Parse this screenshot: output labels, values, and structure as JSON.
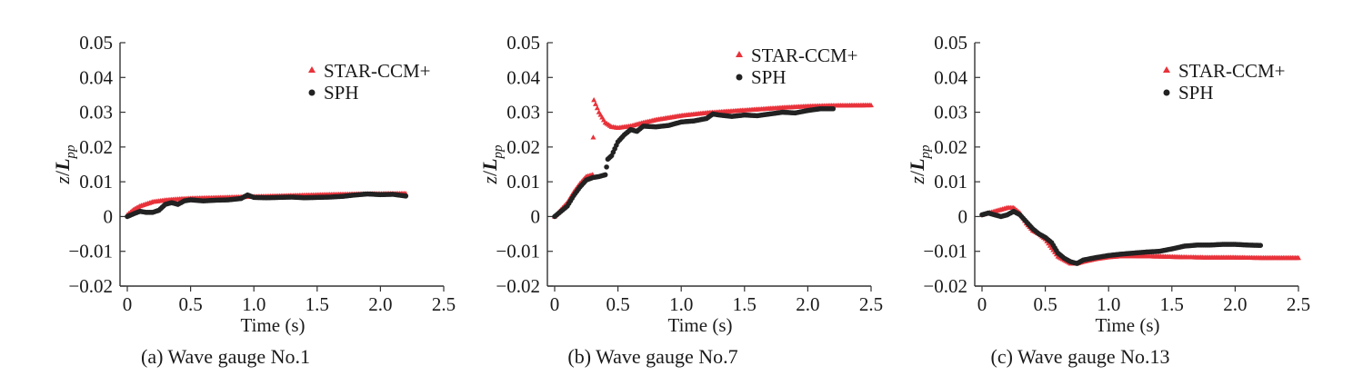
{
  "colors": {
    "star": "#e8323a",
    "sph": "#222222",
    "axis": "#333333"
  },
  "chart_data": [
    {
      "type": "scatter",
      "caption": "(a) Wave gauge No.1",
      "xlabel": "Time (s)",
      "ylabel_main": "z",
      "ylabel_slash": "/",
      "ylabel_L": "L",
      "ylabel_sub": "pp",
      "xlim": [
        0,
        2.5
      ],
      "ylim": [
        -0.02,
        0.05
      ],
      "xticks": [
        0,
        0.5,
        1.0,
        1.5,
        2.0,
        2.5
      ],
      "xtick_labels": [
        "0",
        "0.5",
        "1.0",
        "1.5",
        "2.0",
        "2.5"
      ],
      "yticks": [
        -0.02,
        -0.01,
        0,
        0.01,
        0.02,
        0.03,
        0.04,
        0.05
      ],
      "ytick_labels": [
        "−0.02",
        "−0.01",
        "0",
        "0.01",
        "0.02",
        "0.03",
        "0.04",
        "0.05"
      ],
      "legend": [
        {
          "name": "STAR-CCM+",
          "marker": "triangle"
        },
        {
          "name": "SPH",
          "marker": "circle"
        }
      ],
      "series": [
        {
          "name": "STAR-CCM+",
          "marker": "triangle",
          "x": [
            0,
            0.05,
            0.1,
            0.2,
            0.3,
            0.4,
            0.5,
            0.7,
            1.0,
            1.3,
            1.6,
            1.9,
            2.2
          ],
          "y": [
            0.0005,
            0.002,
            0.003,
            0.0042,
            0.0047,
            0.005,
            0.0052,
            0.0054,
            0.0057,
            0.006,
            0.0063,
            0.0065,
            0.0066
          ]
        },
        {
          "name": "SPH",
          "marker": "circle",
          "x": [
            0,
            0.05,
            0.1,
            0.15,
            0.2,
            0.25,
            0.3,
            0.35,
            0.4,
            0.45,
            0.5,
            0.6,
            0.7,
            0.8,
            0.9,
            0.95,
            1.0,
            1.1,
            1.2,
            1.3,
            1.4,
            1.5,
            1.6,
            1.7,
            1.8,
            1.9,
            2.0,
            2.1,
            2.2
          ],
          "y": [
            0.0,
            0.0008,
            0.0015,
            0.0012,
            0.0012,
            0.0018,
            0.0035,
            0.004,
            0.0035,
            0.0045,
            0.0048,
            0.0045,
            0.0047,
            0.0048,
            0.0052,
            0.0062,
            0.0055,
            0.0054,
            0.0055,
            0.0056,
            0.0054,
            0.0055,
            0.0056,
            0.0058,
            0.0062,
            0.0065,
            0.0063,
            0.0064,
            0.0059
          ]
        }
      ]
    },
    {
      "type": "scatter",
      "caption": "(b) Wave gauge No.7",
      "xlabel": "Time (s)",
      "ylabel_main": "z",
      "ylabel_slash": "/",
      "ylabel_L": "L",
      "ylabel_sub": "pp",
      "xlim": [
        0,
        2.5
      ],
      "ylim": [
        -0.02,
        0.05
      ],
      "xticks": [
        0,
        0.5,
        1.0,
        1.5,
        2.0,
        2.5
      ],
      "xtick_labels": [
        "0",
        "0.5",
        "1.0",
        "1.5",
        "2.0",
        "2.5"
      ],
      "yticks": [
        -0.02,
        -0.01,
        0,
        0.01,
        0.02,
        0.03,
        0.04,
        0.05
      ],
      "ytick_labels": [
        "−0.02",
        "−0.01",
        "0",
        "0.01",
        "0.02",
        "0.03",
        "0.04",
        "0.05"
      ],
      "legend": [
        {
          "name": "STAR-CCM+",
          "marker": "triangle"
        },
        {
          "name": "SPH",
          "marker": "circle"
        }
      ],
      "series": [
        {
          "name": "STAR-CCM+",
          "marker": "triangle",
          "x": [
            0,
            0.05,
            0.1,
            0.15,
            0.2,
            0.25,
            0.3,
            0.31,
            0.35,
            0.4,
            0.45,
            0.5,
            0.6,
            0.7,
            0.8,
            1.0,
            1.2,
            1.4,
            1.6,
            1.8,
            2.0,
            2.2,
            2.5
          ],
          "y": [
            0.0,
            0.002,
            0.004,
            0.007,
            0.0095,
            0.0115,
            0.012,
            0.0335,
            0.03,
            0.027,
            0.0258,
            0.0255,
            0.026,
            0.027,
            0.0278,
            0.029,
            0.0298,
            0.0303,
            0.0308,
            0.0313,
            0.0317,
            0.0319,
            0.032
          ]
        },
        {
          "name": "SPH",
          "marker": "circle",
          "x": [
            0,
            0.05,
            0.1,
            0.15,
            0.2,
            0.25,
            0.3,
            0.35,
            0.4,
            0.42,
            0.45,
            0.5,
            0.55,
            0.6,
            0.65,
            0.7,
            0.8,
            0.9,
            1.0,
            1.1,
            1.2,
            1.25,
            1.3,
            1.4,
            1.5,
            1.6,
            1.7,
            1.8,
            1.9,
            2.0,
            2.1,
            2.2
          ],
          "y": [
            0.0,
            0.0015,
            0.003,
            0.006,
            0.0085,
            0.0105,
            0.0112,
            0.0115,
            0.012,
            0.0165,
            0.0175,
            0.0215,
            0.0235,
            0.025,
            0.0245,
            0.026,
            0.0258,
            0.0262,
            0.0272,
            0.0275,
            0.0282,
            0.0295,
            0.0292,
            0.0288,
            0.0292,
            0.029,
            0.0295,
            0.03,
            0.0298,
            0.0305,
            0.031,
            0.031
          ]
        }
      ]
    },
    {
      "type": "scatter",
      "caption": "(c) Wave gauge No.13",
      "xlabel": "Time (s)",
      "ylabel_main": "z",
      "ylabel_slash": "/",
      "ylabel_L": "L",
      "ylabel_sub": "pp",
      "xlim": [
        0,
        2.5
      ],
      "ylim": [
        -0.02,
        0.05
      ],
      "xticks": [
        0,
        0.5,
        1.0,
        1.5,
        2.0,
        2.5
      ],
      "xtick_labels": [
        "0",
        "0.5",
        "1.0",
        "1.5",
        "2.0",
        "2.5"
      ],
      "yticks": [
        -0.02,
        -0.01,
        0,
        0.01,
        0.02,
        0.03,
        0.04,
        0.05
      ],
      "ytick_labels": [
        "−0.02",
        "−0.01",
        "0",
        "0.01",
        "0.02",
        "0.03",
        "0.04",
        "0.05"
      ],
      "legend": [
        {
          "name": "STAR-CCM+",
          "marker": "triangle"
        },
        {
          "name": "SPH",
          "marker": "circle"
        }
      ],
      "series": [
        {
          "name": "STAR-CCM+",
          "marker": "triangle",
          "x": [
            0,
            0.05,
            0.1,
            0.15,
            0.2,
            0.25,
            0.3,
            0.35,
            0.4,
            0.45,
            0.5,
            0.55,
            0.6,
            0.65,
            0.7,
            0.75,
            0.8,
            0.9,
            1.0,
            1.1,
            1.2,
            1.4,
            1.6,
            1.8,
            2.0,
            2.2,
            2.5
          ],
          "y": [
            0.0005,
            0.001,
            0.0015,
            0.002,
            0.0025,
            0.0025,
            0.001,
            -0.002,
            -0.004,
            -0.005,
            -0.0065,
            -0.009,
            -0.0115,
            -0.0125,
            -0.0135,
            -0.0135,
            -0.013,
            -0.0122,
            -0.0117,
            -0.0114,
            -0.0114,
            -0.0115,
            -0.0117,
            -0.0118,
            -0.0118,
            -0.0119,
            -0.0119
          ]
        },
        {
          "name": "SPH",
          "marker": "circle",
          "x": [
            0,
            0.05,
            0.1,
            0.15,
            0.2,
            0.25,
            0.3,
            0.35,
            0.4,
            0.45,
            0.5,
            0.55,
            0.6,
            0.65,
            0.7,
            0.75,
            0.8,
            0.9,
            1.0,
            1.1,
            1.2,
            1.3,
            1.4,
            1.5,
            1.6,
            1.7,
            1.8,
            1.9,
            2.0,
            2.1,
            2.2
          ],
          "y": [
            0.0005,
            0.001,
            0.0005,
            0.0,
            0.0005,
            0.0015,
            0.0005,
            -0.0015,
            -0.0035,
            -0.005,
            -0.006,
            -0.0075,
            -0.0105,
            -0.012,
            -0.013,
            -0.0135,
            -0.0125,
            -0.0118,
            -0.0112,
            -0.0108,
            -0.0105,
            -0.0102,
            -0.01,
            -0.0093,
            -0.0085,
            -0.0082,
            -0.0082,
            -0.008,
            -0.008,
            -0.0082,
            -0.0083
          ]
        }
      ]
    }
  ]
}
